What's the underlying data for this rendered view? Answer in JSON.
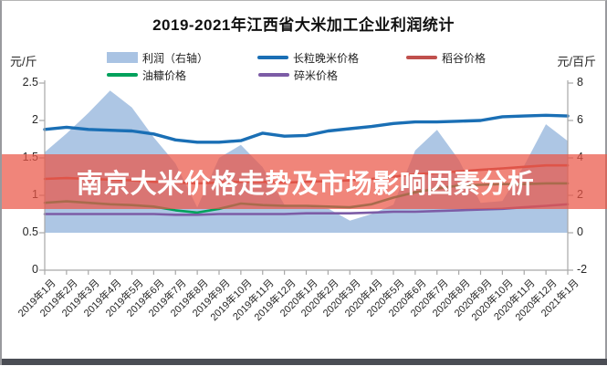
{
  "chart": {
    "title": "2019-2021年江西省大米加工企业利润统计",
    "left_axis_unit": "元/斤",
    "right_axis_unit": "元/百斤"
  },
  "banner": {
    "text": "南京大米价格走势及市场影响因素分析",
    "bg_color": "#ea5646",
    "text_color": "#ffffff"
  },
  "legend": {
    "items": [
      {
        "label": "利润（右轴）",
        "color": "#a9c3e3",
        "swatch": "area"
      },
      {
        "label": "长粒晚米价格",
        "color": "#1a6fb5",
        "swatch": "line"
      },
      {
        "label": "稻谷价格",
        "color": "#c0504d",
        "swatch": "line"
      },
      {
        "label": "油糠价格",
        "color": "#00a15c",
        "swatch": "line"
      },
      {
        "label": "碎米价格",
        "color": "#7c5ca6",
        "swatch": "line"
      }
    ]
  },
  "chart_data": {
    "type": "combo",
    "title": "2019-2021年江西省大米加工企业利润统计",
    "categories": [
      "2019年1月",
      "2019年2月",
      "2019年3月",
      "2019年4月",
      "2019年5月",
      "2019年6月",
      "2019年7月",
      "2019年8月",
      "2019年9月",
      "2019年10月",
      "2019年11月",
      "2019年12月",
      "2020年1月",
      "2020年2月",
      "2020年3月",
      "2020年4月",
      "2020年5月",
      "2020年6月",
      "2020年7月",
      "2020年8月",
      "2020年9月",
      "2020年10月",
      "2020年11月",
      "2020年12月",
      "2021年1月"
    ],
    "left_axis": {
      "unit": "元/斤",
      "min": 0,
      "max": 2.5,
      "ticks": [
        0,
        0.5,
        1,
        1.5,
        2,
        2.5
      ]
    },
    "right_axis": {
      "unit": "元/百斤",
      "min": -2,
      "max": 8,
      "ticks": [
        -2,
        0,
        2,
        4,
        6,
        8
      ]
    },
    "grid": false,
    "legend_position": "top",
    "series": [
      {
        "name": "利润（右轴）",
        "type": "area",
        "axis": "right",
        "color": "#a9c3e3",
        "values": [
          4.3,
          5.3,
          6.4,
          7.6,
          6.7,
          5.1,
          3.7,
          1.35,
          4.0,
          4.7,
          3.5,
          1.5,
          1.4,
          1.3,
          0.65,
          1.0,
          1.5,
          4.4,
          5.5,
          3.9,
          1.6,
          1.7,
          3.6,
          5.8,
          4.9
        ]
      },
      {
        "name": "长粒晚米价格",
        "type": "line",
        "axis": "left",
        "color": "#1a6fb5",
        "width": 3.4,
        "values": [
          1.88,
          1.91,
          1.88,
          1.87,
          1.86,
          1.82,
          1.74,
          1.71,
          1.71,
          1.73,
          1.83,
          1.79,
          1.8,
          1.86,
          1.89,
          1.92,
          1.96,
          1.98,
          1.98,
          1.99,
          2.0,
          2.05,
          2.06,
          2.07,
          2.06
        ]
      },
      {
        "name": "稻谷价格",
        "type": "line",
        "axis": "left",
        "color": "#c0504d",
        "width": 2.6,
        "values": [
          1.22,
          1.23,
          1.22,
          1.21,
          1.2,
          1.18,
          1.17,
          1.16,
          1.17,
          1.18,
          1.18,
          1.17,
          1.18,
          1.19,
          1.2,
          1.22,
          1.25,
          1.28,
          1.3,
          1.32,
          1.34,
          1.36,
          1.38,
          1.4,
          1.4
        ]
      },
      {
        "name": "油糠价格",
        "type": "line",
        "axis": "left",
        "color": "#00a15c",
        "width": 2.6,
        "values": [
          0.9,
          0.92,
          0.9,
          0.88,
          0.87,
          0.85,
          0.8,
          0.77,
          0.82,
          0.89,
          0.87,
          0.86,
          0.86,
          0.85,
          0.84,
          0.88,
          0.97,
          1.04,
          1.09,
          1.13,
          1.14,
          1.15,
          1.15,
          1.16,
          1.16
        ]
      },
      {
        "name": "碎米价格",
        "type": "line",
        "axis": "left",
        "color": "#7c5ca6",
        "width": 2.6,
        "values": [
          0.75,
          0.75,
          0.75,
          0.75,
          0.75,
          0.75,
          0.74,
          0.74,
          0.75,
          0.75,
          0.75,
          0.75,
          0.76,
          0.76,
          0.76,
          0.77,
          0.78,
          0.78,
          0.79,
          0.8,
          0.81,
          0.82,
          0.84,
          0.86,
          0.88
        ]
      }
    ]
  }
}
